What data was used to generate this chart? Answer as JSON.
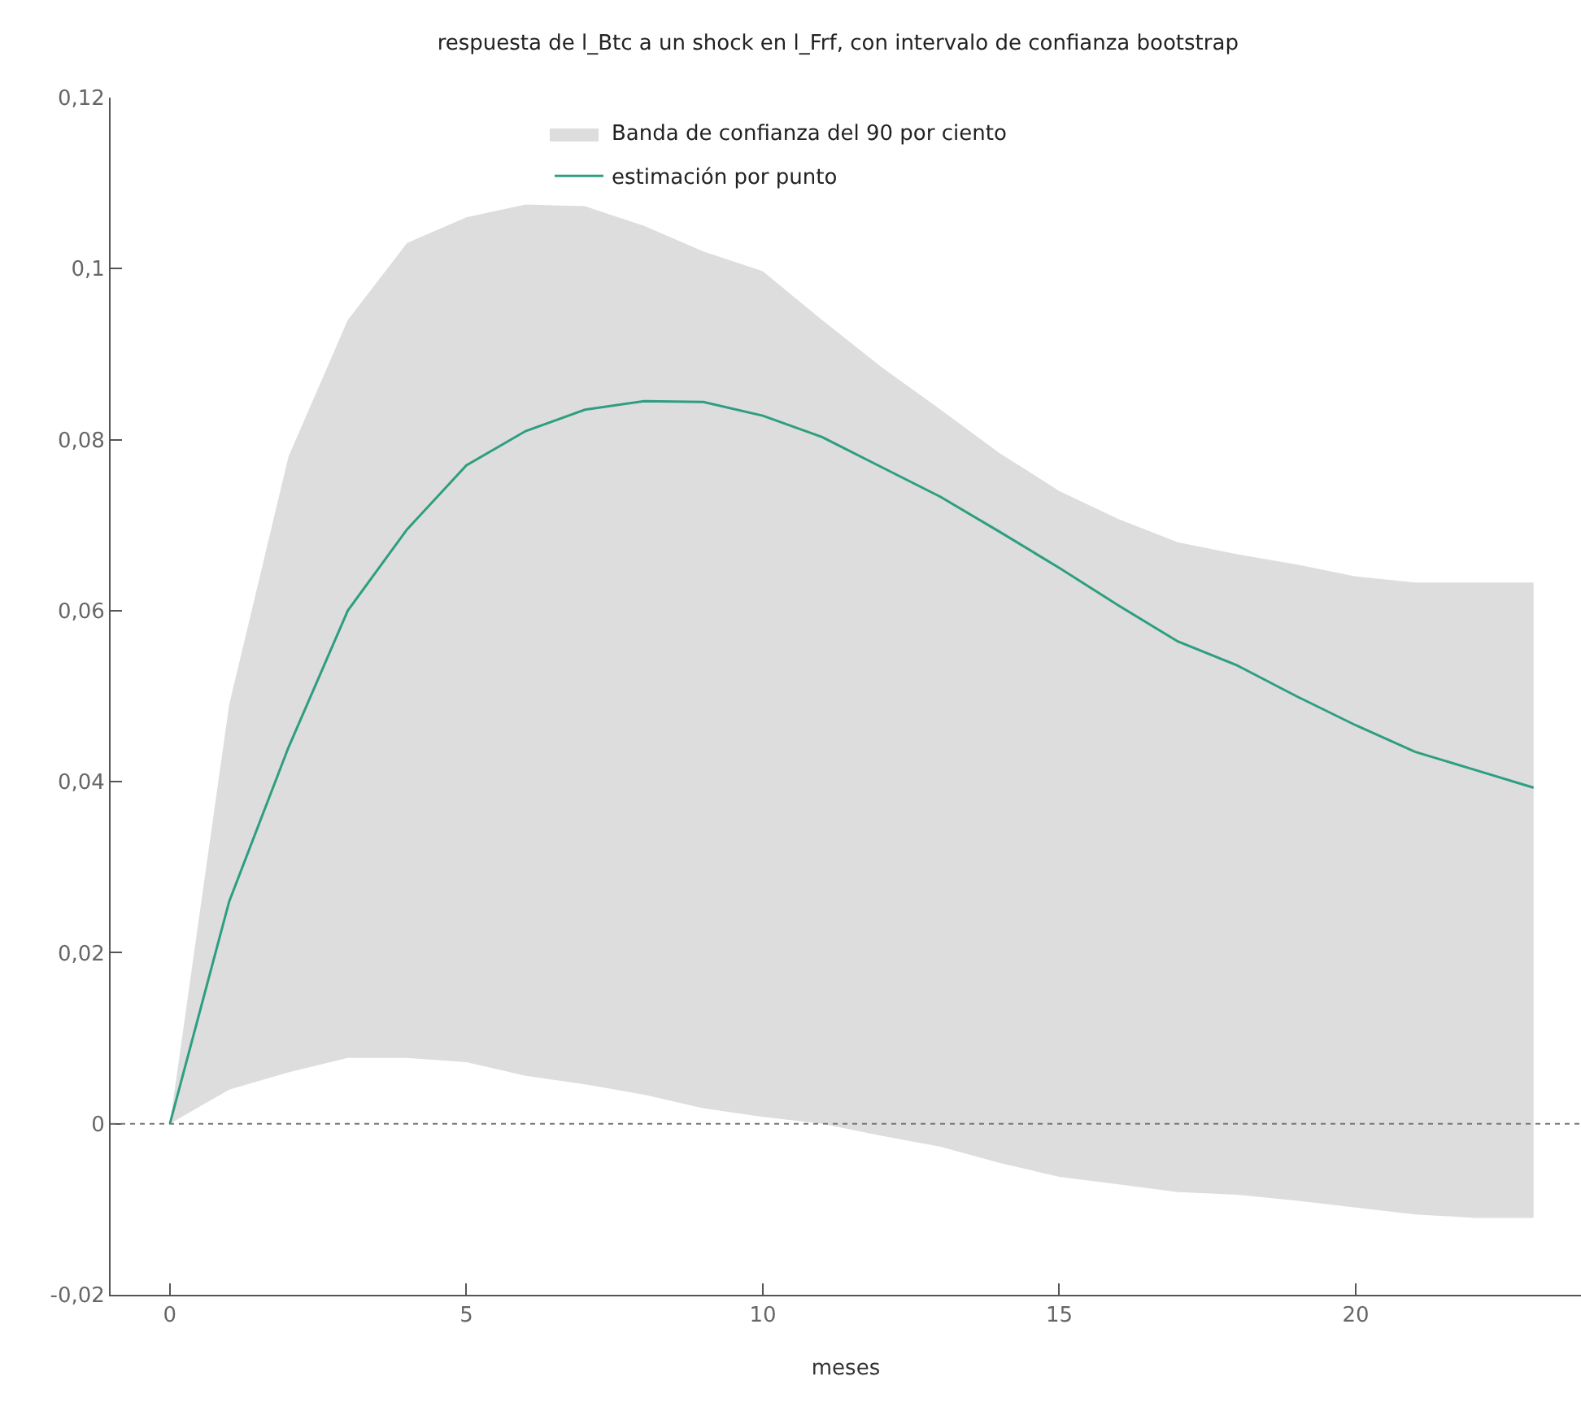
{
  "chart_data": {
    "type": "line",
    "title": "respuesta de l_Btc a un shock en l_Frf, con intervalo de confianza bootstrap",
    "xlabel": "meses",
    "annotations": [
      "Banda de confianza del 90 por ciento"
    ],
    "x": [
      0,
      1,
      2,
      3,
      4,
      5,
      6,
      7,
      8,
      9,
      10,
      11,
      12,
      13,
      14,
      15,
      16,
      17,
      18,
      19,
      20,
      21,
      22,
      23
    ],
    "series": [
      {
        "name": "estimación por punto",
        "color": "#2e9e80",
        "values": [
          0,
          0.026,
          0.044,
          0.06,
          0.0695,
          0.077,
          0.081,
          0.0835,
          0.0845,
          0.0844,
          0.0828,
          0.0803,
          0.0768,
          0.0733,
          0.0692,
          0.065,
          0.0606,
          0.0564,
          0.0536,
          0.05,
          0.0466,
          0.0435,
          0.0414,
          0.0393
        ],
        "lower": [
          0,
          0.004,
          0.006,
          0.0077,
          0.0077,
          0.0072,
          0.0056,
          0.0046,
          0.0034,
          0.0018,
          0.0008,
          0,
          -0.0014,
          -0.0027,
          -0.0046,
          -0.0062,
          -0.0071,
          -0.008,
          -0.0083,
          -0.009,
          -0.0098,
          -0.0106,
          -0.011,
          -0.011
        ],
        "upper": [
          0,
          0.049,
          0.078,
          0.094,
          0.103,
          0.106,
          0.1075,
          0.1073,
          0.105,
          0.102,
          0.0997,
          0.094,
          0.0885,
          0.0835,
          0.0784,
          0.074,
          0.0707,
          0.068,
          0.0666,
          0.0654,
          0.064,
          0.0633,
          0.0633,
          0.0633
        ]
      }
    ],
    "xlim": [
      -1,
      23.8
    ],
    "xticks": [
      0,
      5,
      10,
      15,
      20
    ],
    "ylim": [
      -0.02,
      0.12
    ],
    "yticks": [
      {
        "value": -0.02,
        "label": "-0,02"
      },
      {
        "value": 0,
        "label": "0"
      },
      {
        "value": 0.02,
        "label": "0,02"
      },
      {
        "value": 0.04,
        "label": "0,04"
      },
      {
        "value": 0.06,
        "label": "0,06"
      },
      {
        "value": 0.08,
        "label": "0,08"
      },
      {
        "value": 0.1,
        "label": "0,1"
      },
      {
        "value": 0.12,
        "label": "0,12"
      }
    ],
    "ref_lines": [
      {
        "axis": "y",
        "value": 0,
        "color": "#777777",
        "line_style": "dotted"
      }
    ],
    "grid": false,
    "legend": "top",
    "line_style": "solid",
    "marker": "none"
  }
}
